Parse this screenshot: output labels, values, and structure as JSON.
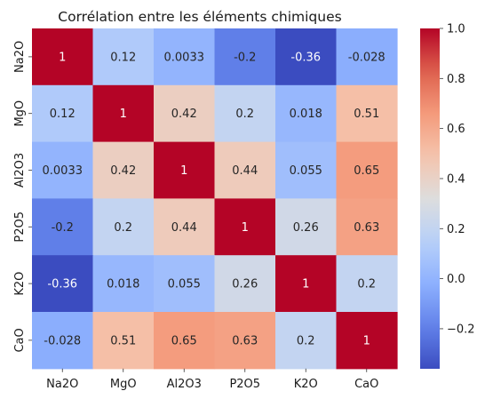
{
  "chart_data": {
    "type": "heatmap",
    "title": "Corrélation entre les éléments chimiques",
    "xlabel": "",
    "ylabel": "",
    "categories": [
      "Na2O",
      "MgO",
      "Al2O3",
      "P2O5",
      "K2O",
      "CaO"
    ],
    "values": [
      [
        1,
        0.12,
        0.0033,
        -0.2,
        -0.36,
        -0.028
      ],
      [
        0.12,
        1,
        0.42,
        0.2,
        0.018,
        0.51
      ],
      [
        0.0033,
        0.42,
        1,
        0.44,
        0.055,
        0.65
      ],
      [
        -0.2,
        0.2,
        0.44,
        1,
        0.26,
        0.63
      ],
      [
        -0.36,
        0.018,
        0.055,
        0.26,
        1,
        0.2
      ],
      [
        -0.028,
        0.51,
        0.65,
        0.63,
        0.2,
        1
      ]
    ],
    "value_labels": [
      [
        "1",
        "0.12",
        "0.0033",
        "-0.2",
        "-0.36",
        "-0.028"
      ],
      [
        "0.12",
        "1",
        "0.42",
        "0.2",
        "0.018",
        "0.51"
      ],
      [
        "0.0033",
        "0.42",
        "1",
        "0.44",
        "0.055",
        "0.65"
      ],
      [
        "-0.2",
        "0.2",
        "0.44",
        "1",
        "0.26",
        "0.63"
      ],
      [
        "-0.36",
        "0.018",
        "0.055",
        "0.26",
        "1",
        "0.2"
      ],
      [
        "-0.028",
        "0.51",
        "0.65",
        "0.63",
        "0.2",
        "1"
      ]
    ],
    "colormap": "coolwarm",
    "color_range": [
      -0.36,
      1
    ],
    "colorbar_ticks": [
      1.0,
      0.8,
      0.6,
      0.4,
      0.2,
      0.0,
      -0.2
    ],
    "colorbar_tick_labels": [
      "1.0",
      "0.8",
      "0.6",
      "0.4",
      "0.2",
      "0.0",
      "−0.2"
    ],
    "legend_position": "right",
    "grid": false
  }
}
